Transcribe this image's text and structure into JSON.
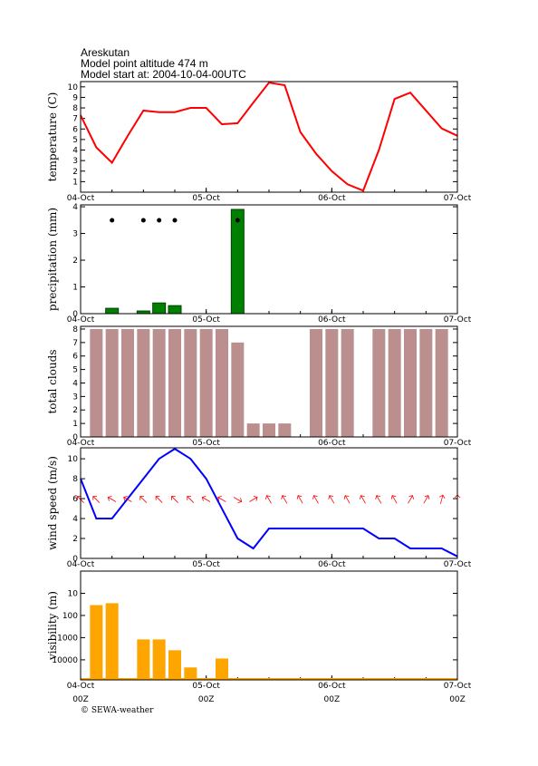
{
  "header": {
    "station": "Areskutan",
    "altitude": "Model point altitude  474 m",
    "start": "Model start at: 2004-10-04-00UTC"
  },
  "footer": "© SEWA-weather",
  "chart_data": [
    {
      "type": "line",
      "ylabel": "temperature (C)",
      "color": "#ff0000",
      "x": [
        0,
        3,
        6,
        9,
        12,
        15,
        18,
        21,
        24,
        27,
        30,
        33,
        36,
        39,
        42,
        45,
        48,
        51,
        54,
        57,
        60,
        63,
        66,
        69,
        72
      ],
      "values": [
        7.3,
        4.25,
        2.8,
        5.35,
        7.75,
        7.6,
        7.6,
        8.0,
        8.0,
        6.45,
        6.55,
        8.5,
        10.4,
        10.15,
        5.7,
        3.65,
        2.0,
        0.75,
        0.15,
        4.0,
        8.85,
        9.45,
        7.75,
        6.05,
        5.35
      ],
      "xlim": [
        0,
        72
      ],
      "ylim": [
        0,
        10.5
      ],
      "yticks": [
        1,
        2,
        3,
        4,
        5,
        6,
        7,
        8,
        9,
        10
      ],
      "xticks": [
        {
          "value": 0,
          "label": "04-Oct"
        },
        {
          "value": 24,
          "label": "05-Oct"
        },
        {
          "value": 48,
          "label": "06-Oct"
        },
        {
          "value": 72,
          "label": "07-Oct"
        }
      ]
    },
    {
      "type": "bar",
      "ylabel": "precipitation (mm)",
      "color": "#008000",
      "x": [
        6,
        12,
        15,
        18,
        30
      ],
      "values": [
        0.2,
        0.1,
        0.4,
        0.3,
        3.9
      ],
      "symbol_x": [
        6,
        12,
        15,
        18,
        30
      ],
      "xlim": [
        0,
        72
      ],
      "ylim": [
        0,
        4.07
      ],
      "yticks": [
        0,
        1,
        2,
        3,
        4
      ],
      "xticks": [
        {
          "value": 0,
          "label": "04-Oct"
        },
        {
          "value": 24,
          "label": "05-Oct"
        },
        {
          "value": 48,
          "label": "06-Oct"
        },
        {
          "value": 72,
          "label": "07-Oct"
        }
      ]
    },
    {
      "type": "bar",
      "ylabel": "total clouds",
      "color": "#bc8f8f",
      "x": [
        3,
        6,
        9,
        12,
        15,
        18,
        21,
        24,
        27,
        30,
        33,
        36,
        39,
        42,
        45,
        48,
        51,
        54,
        57,
        60,
        63,
        66,
        69
      ],
      "values": [
        8,
        8,
        8,
        8,
        8,
        8,
        8,
        8,
        8,
        7,
        1,
        1,
        1,
        0,
        8,
        8,
        8,
        0,
        8,
        8,
        8,
        8,
        8
      ],
      "xlim": [
        0,
        72
      ],
      "ylim": [
        0,
        8.2
      ],
      "yticks": [
        0,
        1,
        2,
        3,
        4,
        5,
        6,
        7,
        8
      ],
      "xticks": [
        {
          "value": 0,
          "label": "04-Oct"
        },
        {
          "value": 24,
          "label": "05-Oct"
        },
        {
          "value": 48,
          "label": "06-Oct"
        },
        {
          "value": 72,
          "label": "07-Oct"
        }
      ]
    },
    {
      "type": "line",
      "ylabel": "wind speed (m/s)",
      "color": "#0000ff",
      "arrow_color": "#ff0000",
      "x": [
        0,
        3,
        6,
        9,
        12,
        15,
        18,
        21,
        24,
        27,
        30,
        33,
        36,
        39,
        42,
        45,
        48,
        51,
        54,
        57,
        60,
        63,
        66,
        69,
        72
      ],
      "values": [
        8,
        4,
        4,
        6,
        8,
        10,
        11,
        10,
        8,
        5,
        2,
        1,
        3,
        3,
        3,
        3,
        3,
        3,
        3,
        2,
        2,
        1,
        1,
        1,
        0.2
      ],
      "direction": [
        315,
        315,
        300,
        300,
        315,
        315,
        315,
        315,
        300,
        300,
        120,
        60,
        330,
        330,
        330,
        330,
        330,
        330,
        330,
        330,
        330,
        30,
        30,
        15,
        0
      ],
      "xlim": [
        0,
        72
      ],
      "ylim": [
        0,
        11.1
      ],
      "yticks": [
        0,
        2,
        4,
        6,
        8,
        10
      ],
      "xticks": [
        {
          "value": 0,
          "label": "04-Oct"
        },
        {
          "value": 24,
          "label": "05-Oct"
        },
        {
          "value": 48,
          "label": "06-Oct"
        },
        {
          "value": 72,
          "label": "07-Oct"
        }
      ]
    },
    {
      "type": "logbar",
      "ylabel": "visibility (m)",
      "color": "#ffa500",
      "x": [
        3,
        6,
        9,
        12,
        15,
        18,
        21,
        24,
        27
      ],
      "values": [
        34,
        28,
        null,
        1200,
        1200,
        3700,
        22000,
        null,
        8700
      ],
      "xlim": [
        0,
        72
      ],
      "ylim": [
        1,
        80000
      ],
      "log": true,
      "inverted": true,
      "yticks": [
        10,
        100,
        1000,
        10000
      ],
      "xticks": [
        {
          "value": 0,
          "label": "04-Oct"
        },
        {
          "value": 24,
          "label": "05-Oct"
        },
        {
          "value": 48,
          "label": "06-Oct"
        },
        {
          "value": 72,
          "label": "07-Oct"
        }
      ],
      "xticks_utc": [
        {
          "value": 0,
          "label": "00Z"
        },
        {
          "value": 24,
          "label": "00Z"
        },
        {
          "value": 48,
          "label": "00Z"
        },
        {
          "value": 72,
          "label": "00Z"
        }
      ]
    }
  ]
}
